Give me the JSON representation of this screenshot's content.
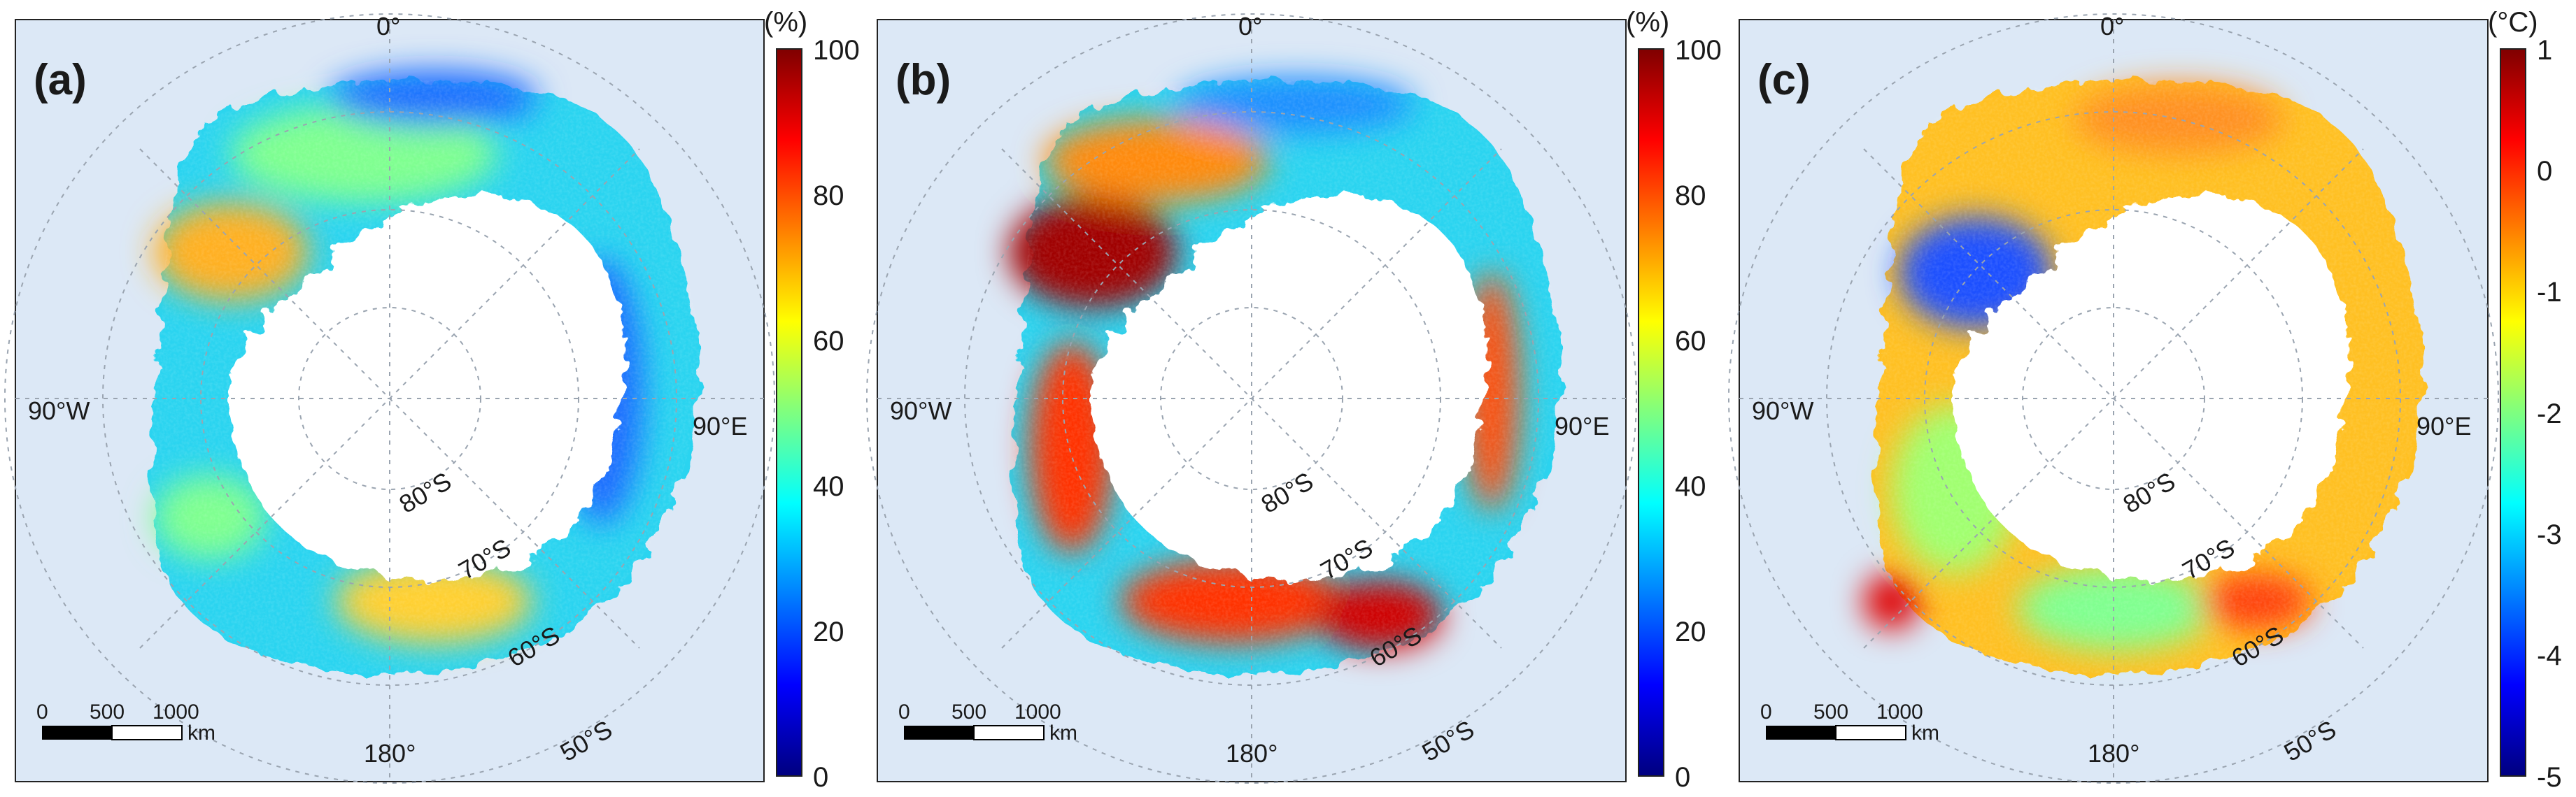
{
  "panels": [
    {
      "label": "(a)",
      "unit": "(%)",
      "colorbar_ticks": [
        "100",
        "80",
        "60",
        "40",
        "20",
        "0"
      ],
      "colorbar_range": [
        0,
        100
      ],
      "field": "a"
    },
    {
      "label": "(b)",
      "unit": "(%)",
      "colorbar_ticks": [
        "100",
        "80",
        "60",
        "40",
        "20",
        "0"
      ],
      "colorbar_range": [
        0,
        100
      ],
      "field": "b"
    },
    {
      "label": "(c)",
      "unit": "(°C)",
      "colorbar_ticks": [
        "1",
        "0",
        "-1",
        "-2",
        "-3",
        "-4",
        "-5"
      ],
      "colorbar_range": [
        -5,
        1
      ],
      "field": "c"
    }
  ],
  "map": {
    "lon_labels": {
      "top": "0°",
      "left": "90°W",
      "right": "90°E",
      "bottom": "180°"
    },
    "lat_labels": [
      "80°S",
      "70°S",
      "60°S",
      "50°S"
    ],
    "scalebar": {
      "ticks": [
        "0",
        "500",
        "1000"
      ],
      "unit": "km"
    }
  },
  "colors": {
    "ocean": "#dce8f6",
    "land": "#ffffff",
    "grid": "#9aa4b0",
    "jet": [
      "#00007f",
      "#0000ff",
      "#007fff",
      "#00ffff",
      "#7fff7f",
      "#ffff00",
      "#ff7f00",
      "#ff0000",
      "#7f0000"
    ]
  }
}
